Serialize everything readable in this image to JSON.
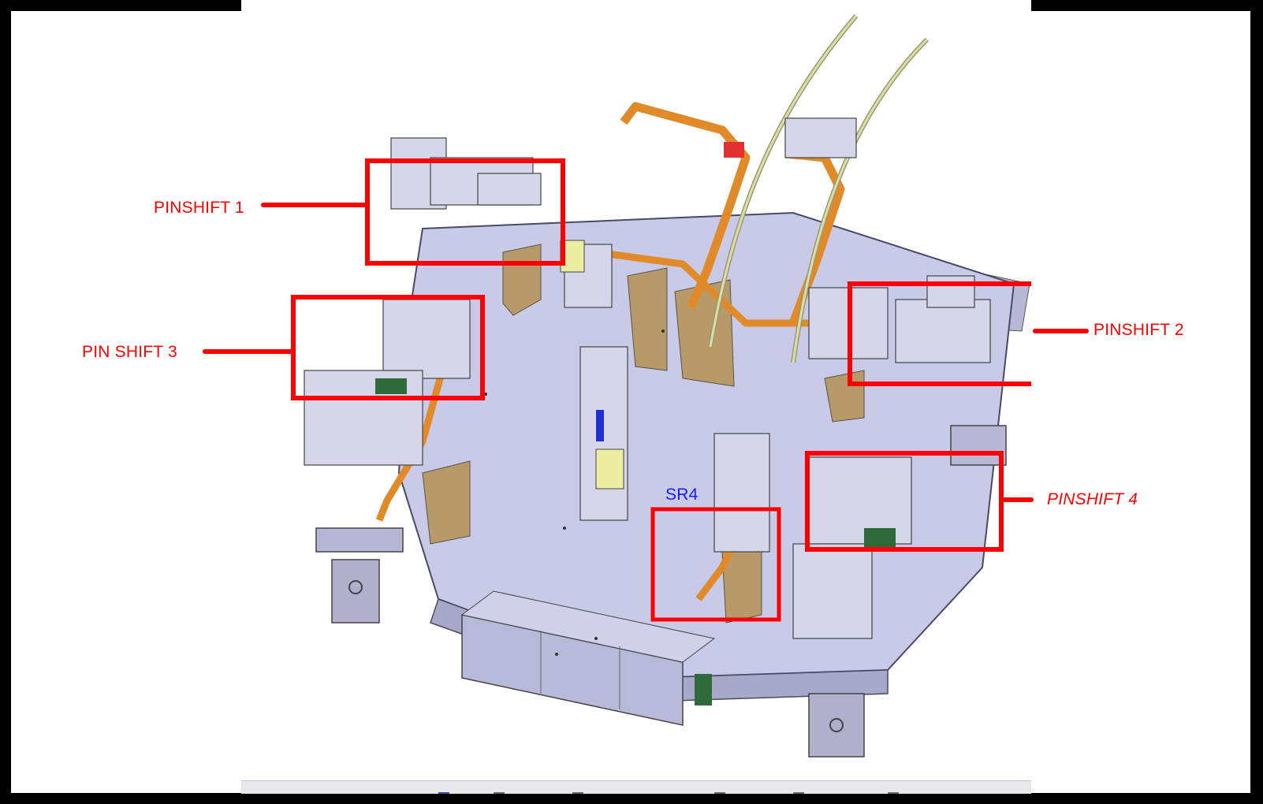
{
  "annotations": {
    "pinshift_1": "PINSHIFT 1",
    "pinshift_2": "PINSHIFT 2",
    "pin_shift_3": "PIN SHIFT 3",
    "pinshift_4": "PINSHIFT 4",
    "sr4": "SR4"
  },
  "colors": {
    "callout": "#ff0000",
    "sr4_label": "#1a1aff",
    "base_plate": "#c9c9e8",
    "fixture_arm": "#e08a2a",
    "bracket": "#b89a6a"
  }
}
